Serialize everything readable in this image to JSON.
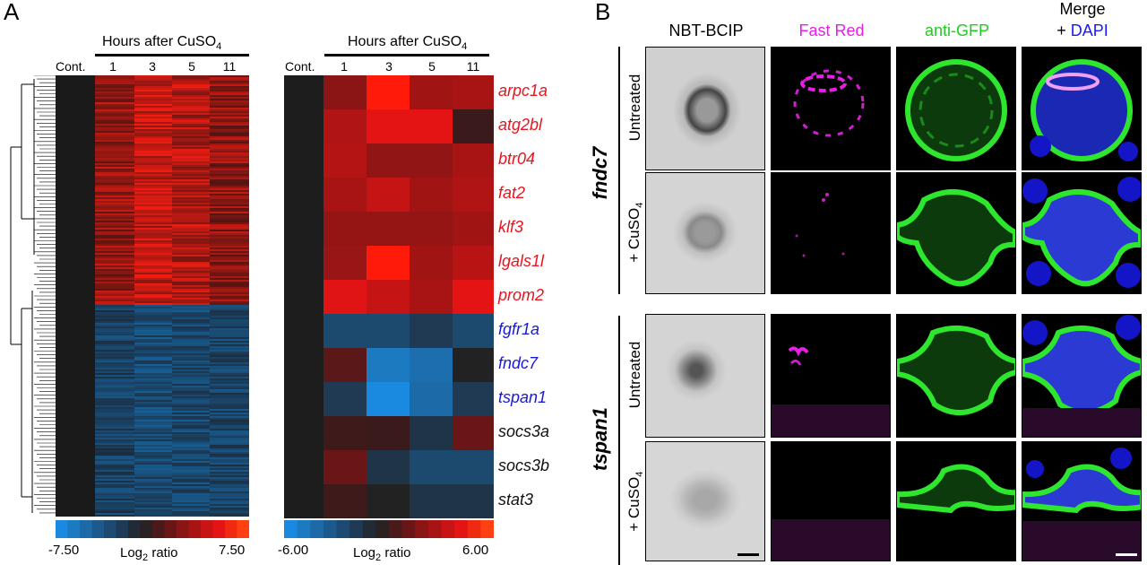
{
  "panel_a": {
    "letter": "A",
    "left_heatmap": {
      "hours_label": "Hours after CuSO",
      "hours_sub": "4",
      "cont_label": "Cont.",
      "ticks": [
        "1",
        "3",
        "5",
        "11"
      ],
      "scale_min": "-7.50",
      "scale_max": "7.50",
      "scale_label": "Log",
      "scale_label_sub": "2",
      "scale_label_rest": " ratio"
    },
    "right_heatmap": {
      "hours_label": "Hours after CuSO",
      "hours_sub": "4",
      "cont_label": "Cont.",
      "ticks": [
        "1",
        "3",
        "5",
        "11"
      ],
      "scale_min": "-6.00",
      "scale_max": "6.00",
      "scale_label": "Log",
      "scale_label_sub": "2",
      "scale_label_rest": " ratio"
    },
    "genes": [
      {
        "name": "arpc1a",
        "color": "#e8141e",
        "cells": [
          "#1d1d1d",
          "#8b1515",
          "#ff1a0a",
          "#a01414",
          "#a81414"
        ]
      },
      {
        "name": "atg2bl",
        "color": "#e8141e",
        "cells": [
          "#1d1d1d",
          "#b01414",
          "#e41414",
          "#e41414",
          "#3a1a1a"
        ]
      },
      {
        "name": "btr04",
        "color": "#e8141e",
        "cells": [
          "#1d1d1d",
          "#b51414",
          "#921515",
          "#921515",
          "#a81414"
        ]
      },
      {
        "name": "fat2",
        "color": "#e8141e",
        "cells": [
          "#1d1d1d",
          "#a81414",
          "#c41414",
          "#a01414",
          "#b01414"
        ]
      },
      {
        "name": "klf3",
        "color": "#e8141e",
        "cells": [
          "#1d1d1d",
          "#951515",
          "#951515",
          "#951515",
          "#a01414"
        ]
      },
      {
        "name": "lgals1l",
        "color": "#e8141e",
        "cells": [
          "#1d1d1d",
          "#9a1515",
          "#ff1a0a",
          "#a01414",
          "#b81414"
        ]
      },
      {
        "name": "prom2",
        "color": "#e8141e",
        "cells": [
          "#1d1d1d",
          "#e01414",
          "#c41414",
          "#a81414",
          "#e41414"
        ]
      },
      {
        "name": "fgfr1a",
        "color": "#1919d8",
        "cells": [
          "#1d1d1d",
          "#1c4a6e",
          "#1c4a6e",
          "#1f3a52",
          "#1c4a6e"
        ]
      },
      {
        "name": "fndc7",
        "color": "#1919d8",
        "cells": [
          "#1d1d1d",
          "#5a1818",
          "#1c7ac0",
          "#1c6eae",
          "#222222"
        ]
      },
      {
        "name": "tspan1",
        "color": "#1919d8",
        "cells": [
          "#1d1d1d",
          "#1f3a52",
          "#1a8ae0",
          "#1c6aa8",
          "#1f3a52"
        ]
      },
      {
        "name": "socs3a",
        "color": "#111111",
        "cells": [
          "#1d1d1d",
          "#3e1a1a",
          "#3a1a1a",
          "#1f3446",
          "#6a1616"
        ]
      },
      {
        "name": "socs3b",
        "color": "#111111",
        "cells": [
          "#1d1d1d",
          "#6a1616",
          "#1f3446",
          "#1c4a6e",
          "#1c4a6e"
        ]
      },
      {
        "name": "stat3",
        "color": "#111111",
        "cells": [
          "#1d1d1d",
          "#3e1a1a",
          "#222222",
          "#1f3446",
          "#1f3446"
        ]
      }
    ],
    "colorbar": [
      "#1a8ae0",
      "#1c7ac0",
      "#1c6aa8",
      "#1c5a8e",
      "#1d4a72",
      "#1f3a56",
      "#222a36",
      "#2a2222",
      "#4a1a1a",
      "#6a1616",
      "#8a1515",
      "#a81414",
      "#c81414",
      "#e41414",
      "#f02a10",
      "#ff4010"
    ]
  },
  "panel_b": {
    "letter": "B",
    "columns": [
      {
        "label": "NBT-BCIP",
        "color": "#000000"
      },
      {
        "label": "Fast Red",
        "color": "#e61ee6"
      },
      {
        "label": "anti-GFP",
        "color": "#22cc22"
      },
      {
        "label": "Merge",
        "color": "#000000"
      }
    ],
    "merge_plus": "+ ",
    "merge_dapi": "DAPI",
    "merge_dapi_color": "#1919ff",
    "genes": [
      {
        "name": "fndc7",
        "rows": [
          {
            "condition": "Untreated"
          },
          {
            "condition": "+ CuSO",
            "sub": "4"
          }
        ]
      },
      {
        "name": "tspan1",
        "rows": [
          {
            "condition": "Untreated"
          },
          {
            "condition": "+ CuSO",
            "sub": "4"
          }
        ]
      }
    ]
  }
}
